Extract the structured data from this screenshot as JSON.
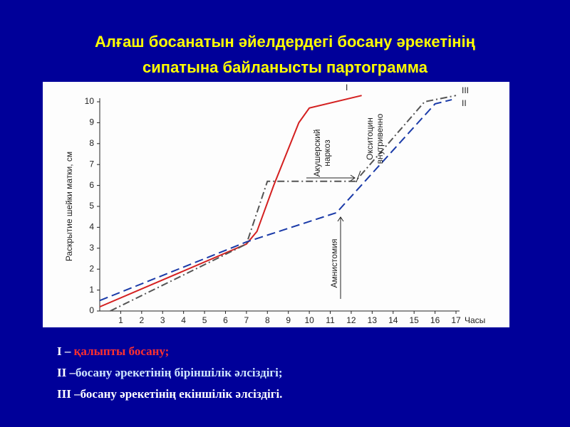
{
  "title": [
    "Алғаш босанатын әйелдердегі  босану әрекетінің",
    "сипатына байланысты партограмма"
  ],
  "chart_data": {
    "type": "line",
    "ylabel": "Раскрытие шейки матки, см",
    "xlabel": "Часы",
    "xlim": [
      0,
      17
    ],
    "xticks": [
      1,
      2,
      3,
      4,
      5,
      6,
      7,
      8,
      9,
      10,
      11,
      12,
      13,
      14,
      15,
      16,
      17
    ],
    "ylim": [
      0,
      10
    ],
    "yticks": [
      0,
      1,
      2,
      3,
      4,
      5,
      6,
      7,
      8,
      9,
      10
    ],
    "series": [
      {
        "name": "I",
        "color": "#d42020",
        "style": "solid",
        "x": [
          0,
          7,
          7.5,
          8.3,
          9.5,
          10,
          12.5
        ],
        "values": [
          0.2,
          3.2,
          3.8,
          6,
          9,
          9.7,
          10.3
        ]
      },
      {
        "name": "II",
        "color": "#1a3aa8",
        "style": "dashed",
        "x": [
          0,
          7,
          11.3,
          16,
          16.8
        ],
        "values": [
          0.5,
          3.3,
          4.7,
          9.9,
          10.1
        ]
      },
      {
        "name": "III",
        "color": "#555555",
        "style": "dashdot",
        "x": [
          0.5,
          7,
          8,
          12.2,
          15.5,
          17
        ],
        "values": [
          0,
          3.2,
          6.2,
          6.2,
          10,
          10.3
        ]
      }
    ],
    "annotations": [
      [
        "Акушерский",
        "наркоз"
      ],
      [
        "Окситоцин",
        "внутривенно"
      ],
      [
        "Амнистомия"
      ]
    ]
  },
  "legend_text": [
    {
      "numeral": "I –",
      "text": "қалыпты босану;"
    },
    {
      "numeral": "II –",
      "text": "босану әрекетінің біріншілік әлсіздігі;"
    },
    {
      "numeral": "III –",
      "text": "босану әрекетінің екіншілік әлсіздігі."
    }
  ]
}
